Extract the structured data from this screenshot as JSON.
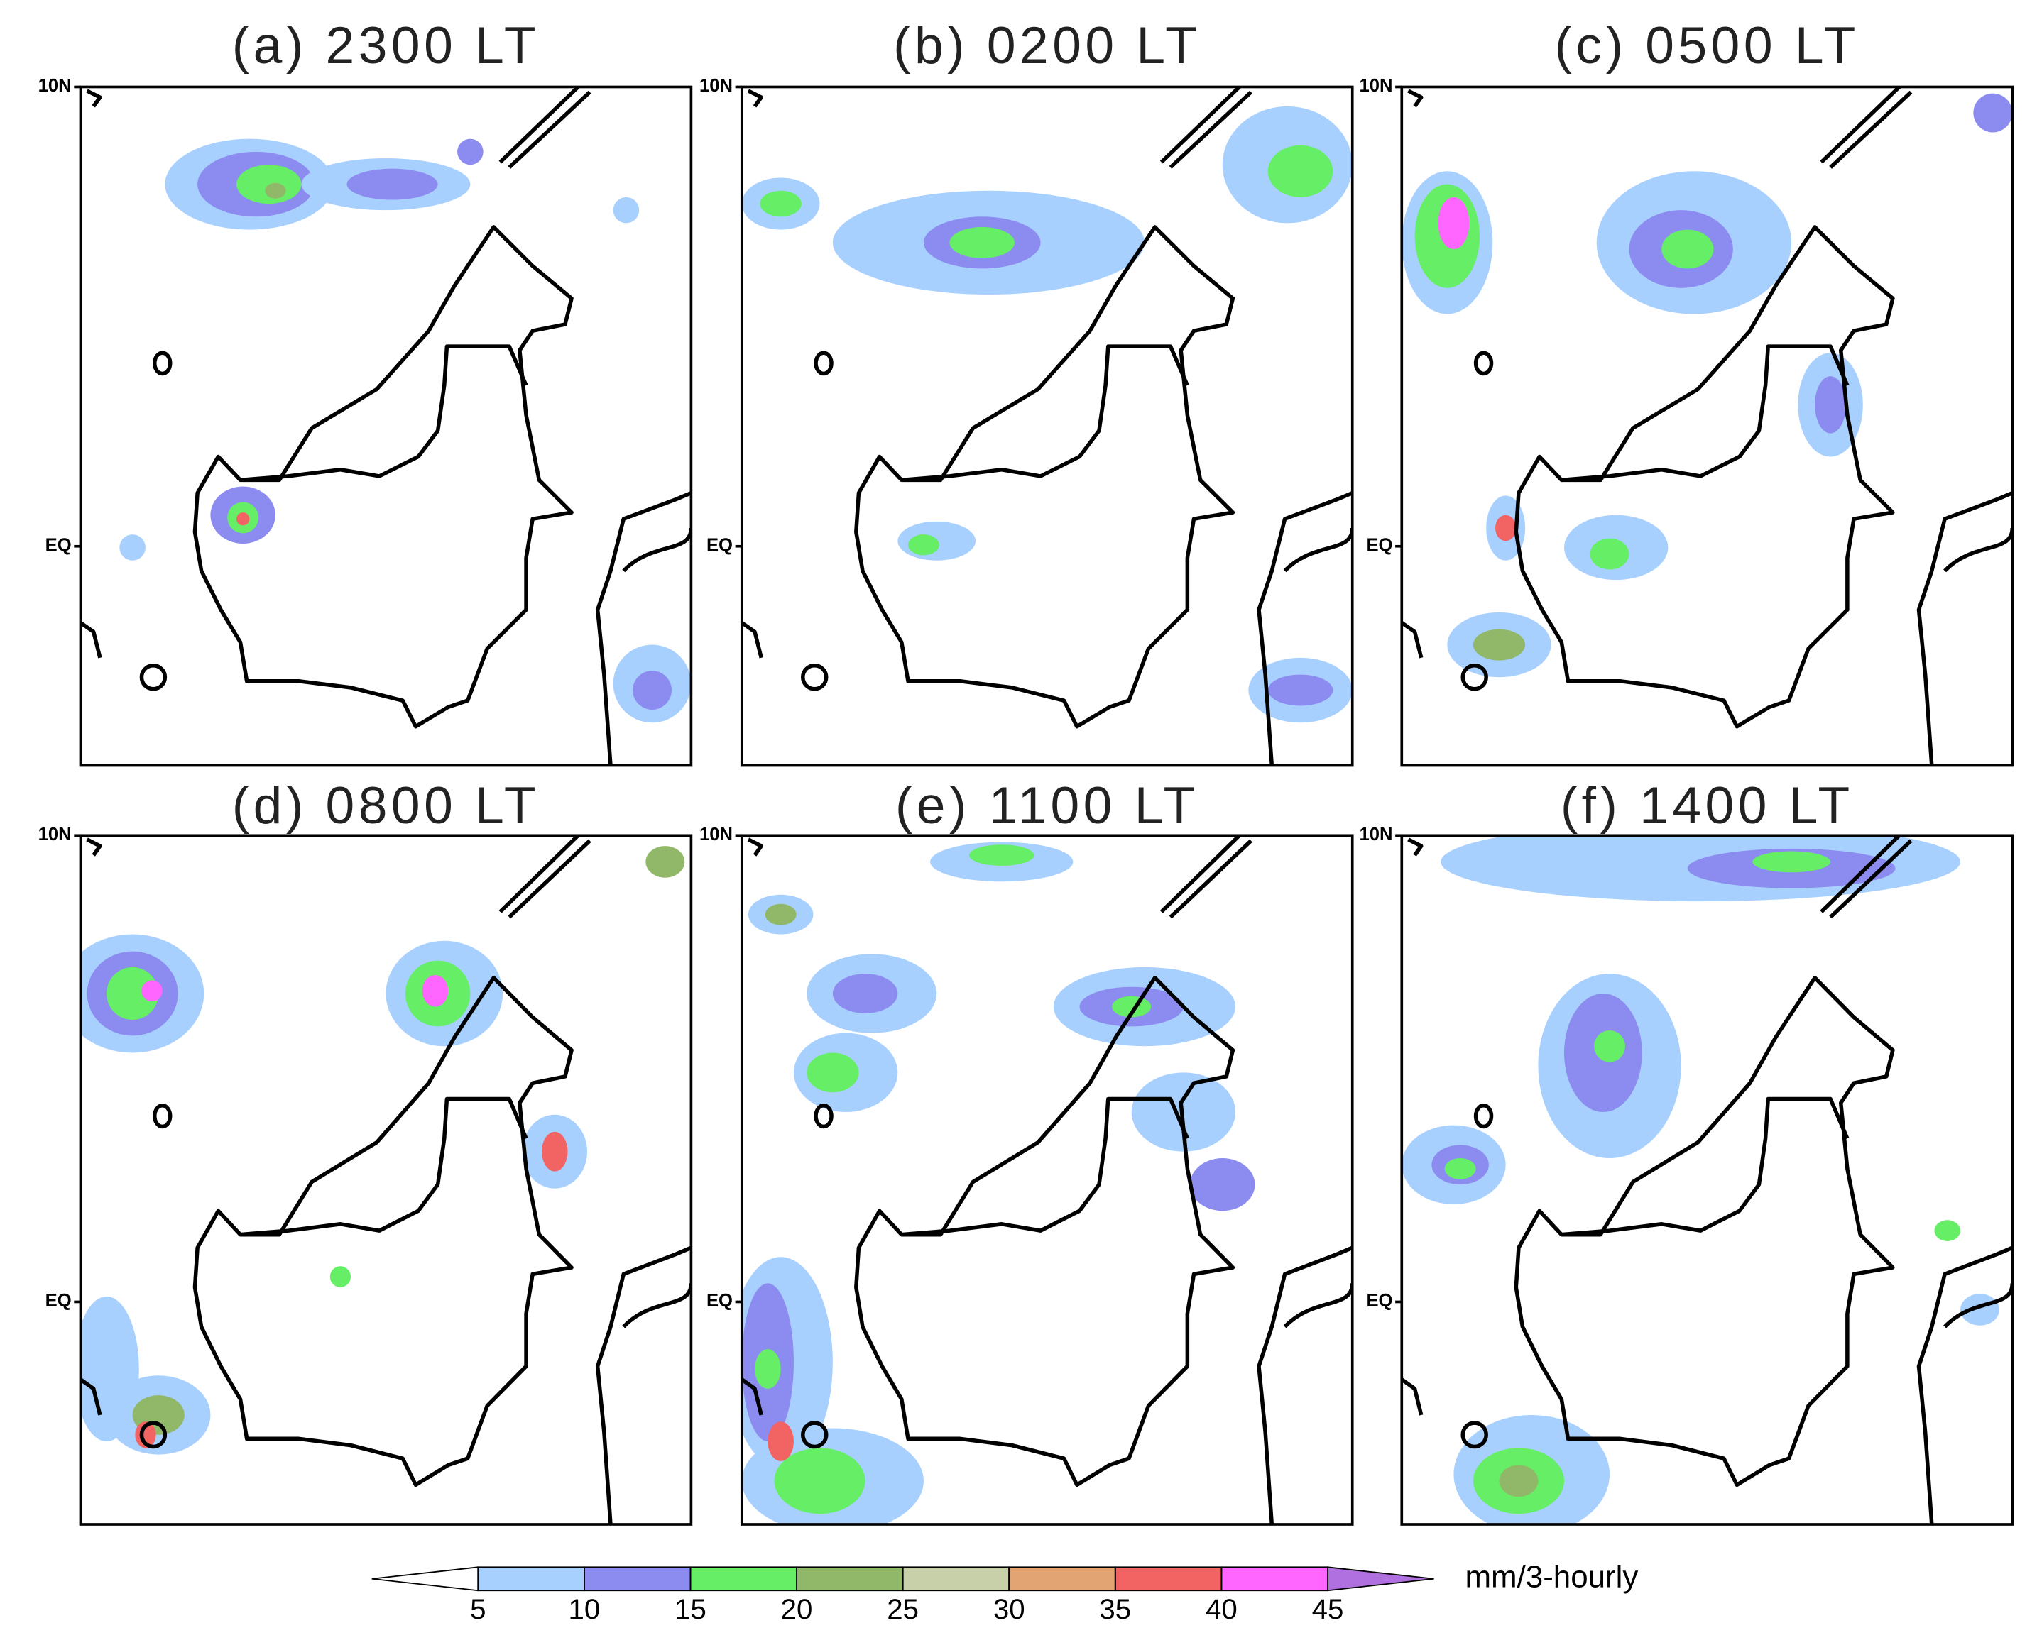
{
  "panels": [
    {
      "title": "(a) 2300 LT",
      "yticks": [
        "10N",
        "EQ"
      ]
    },
    {
      "title": "(b) 0200 LT",
      "yticks": [
        "10N",
        "EQ"
      ]
    },
    {
      "title": "(c) 0500 LT",
      "yticks": [
        "10N",
        "EQ"
      ]
    },
    {
      "title": "(d) 0800 LT",
      "yticks": [
        "10N",
        "EQ"
      ]
    },
    {
      "title": "(e) 1100 LT",
      "yticks": [
        "10N",
        "EQ"
      ]
    },
    {
      "title": "(f) 1400 LT",
      "yticks": [
        "10N",
        "EQ"
      ]
    }
  ],
  "colorbar": {
    "levels": [
      5,
      10,
      15,
      20,
      25,
      30,
      35,
      40,
      45
    ],
    "colors": [
      "#ffffff",
      "#a8d0ff",
      "#8c8cf0",
      "#66ee66",
      "#90b868",
      "#c8d0aa",
      "#e2a472",
      "#f26464",
      "#ff66ff",
      "#b070e0"
    ],
    "unit": "mm/3-hourly"
  }
}
